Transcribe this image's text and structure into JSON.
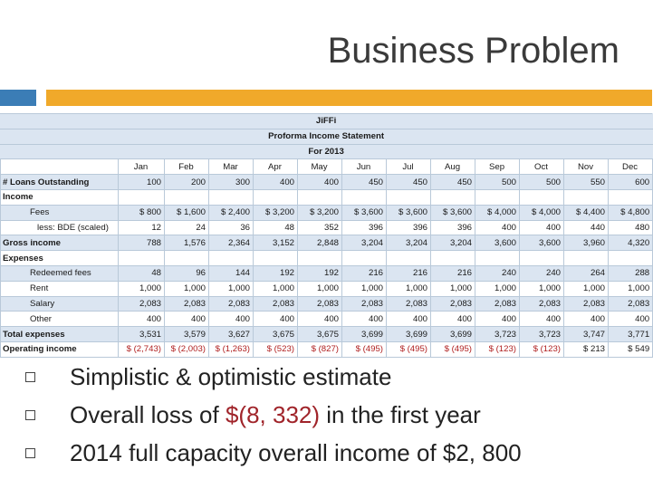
{
  "slide": {
    "title": "Business Problem"
  },
  "table": {
    "company": "JiFFi",
    "statement": "Proforma Income Statement",
    "period": "For 2013",
    "months": [
      "Jan",
      "Feb",
      "Mar",
      "Apr",
      "May",
      "Jun",
      "Jul",
      "Aug",
      "Sep",
      "Oct",
      "Nov",
      "Dec"
    ],
    "rows": [
      {
        "label": "# Loans Outstanding",
        "values": [
          "100",
          "200",
          "300",
          "400",
          "400",
          "450",
          "450",
          "450",
          "500",
          "500",
          "550",
          "600"
        ]
      },
      {
        "label": "Income",
        "values": [
          "",
          "",
          "",
          "",
          "",
          "",
          "",
          "",
          "",
          "",
          "",
          ""
        ]
      },
      {
        "label": "Fees",
        "values": [
          "$ 800",
          "$ 1,600",
          "$ 2,400",
          "$ 3,200",
          "$ 3,200",
          "$ 3,600",
          "$ 3,600",
          "$ 3,600",
          "$ 4,000",
          "$ 4,000",
          "$ 4,400",
          "$ 4,800"
        ]
      },
      {
        "label": "less: BDE (scaled)",
        "values": [
          "12",
          "24",
          "36",
          "48",
          "352",
          "396",
          "396",
          "396",
          "400",
          "400",
          "440",
          "480"
        ]
      },
      {
        "label": "Gross income",
        "values": [
          "788",
          "1,576",
          "2,364",
          "3,152",
          "2,848",
          "3,204",
          "3,204",
          "3,204",
          "3,600",
          "3,600",
          "3,960",
          "4,320"
        ]
      },
      {
        "label": "Expenses",
        "values": [
          "",
          "",
          "",
          "",
          "",
          "",
          "",
          "",
          "",
          "",
          "",
          ""
        ]
      },
      {
        "label": "Redeemed fees",
        "values": [
          "48",
          "96",
          "144",
          "192",
          "192",
          "216",
          "216",
          "216",
          "240",
          "240",
          "264",
          "288"
        ]
      },
      {
        "label": "Rent",
        "values": [
          "1,000",
          "1,000",
          "1,000",
          "1,000",
          "1,000",
          "1,000",
          "1,000",
          "1,000",
          "1,000",
          "1,000",
          "1,000",
          "1,000"
        ]
      },
      {
        "label": "Salary",
        "values": [
          "2,083",
          "2,083",
          "2,083",
          "2,083",
          "2,083",
          "2,083",
          "2,083",
          "2,083",
          "2,083",
          "2,083",
          "2,083",
          "2,083"
        ]
      },
      {
        "label": "Other",
        "values": [
          "400",
          "400",
          "400",
          "400",
          "400",
          "400",
          "400",
          "400",
          "400",
          "400",
          "400",
          "400"
        ]
      },
      {
        "label": "Total expenses",
        "values": [
          "3,531",
          "3,579",
          "3,627",
          "3,675",
          "3,675",
          "3,699",
          "3,699",
          "3,699",
          "3,723",
          "3,723",
          "3,747",
          "3,771"
        ]
      },
      {
        "label": "Operating income",
        "values": [
          "$ (2,743)",
          "$ (2,003)",
          "$ (1,263)",
          "$ (523)",
          "$ (827)",
          "$ (495)",
          "$ (495)",
          "$ (495)",
          "$ (123)",
          "$ (123)",
          "$ 213",
          "$ 549"
        ]
      }
    ]
  },
  "bullets": {
    "b1": "Simplistic & optimistic estimate",
    "b2_pre": "Overall loss of ",
    "b2_hl": "$(8, 332)",
    "b2_post": " in the first year",
    "b3": "2014 full capacity overall income of $2, 800"
  },
  "colors": {
    "accent_blue": "#3b7db6",
    "accent_orange": "#f0a92a",
    "loss_red": "#a0242a",
    "table_shade": "#dbe5f1"
  }
}
